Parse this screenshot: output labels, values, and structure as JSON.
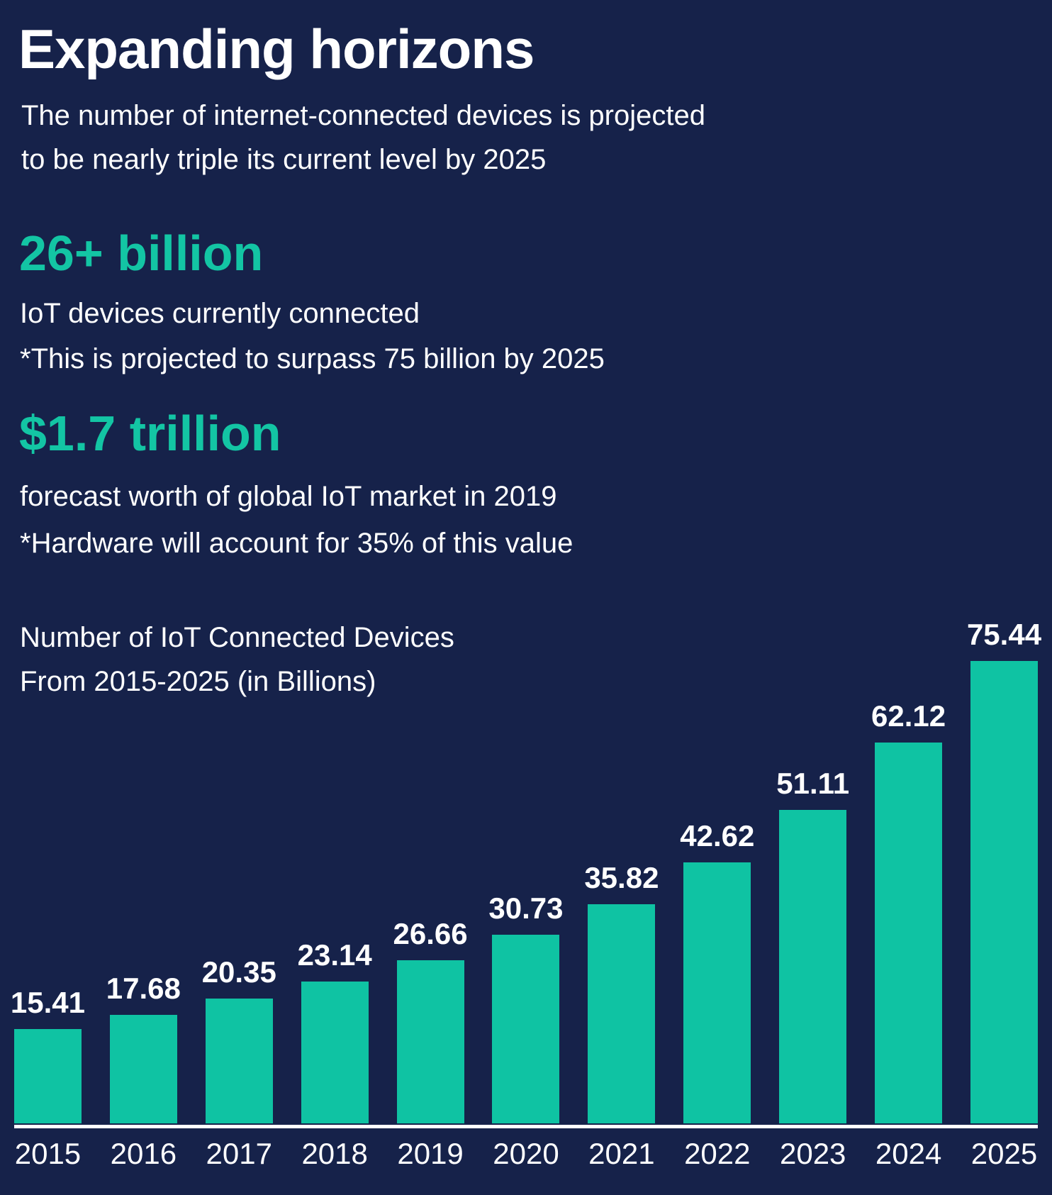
{
  "colors": {
    "background": "#16224a",
    "accent_teal": "#13c5a4",
    "bar_teal": "#0fc3a3",
    "text": "#ffffff"
  },
  "header": {
    "title": "Expanding horizons",
    "subtitle_lines": [
      "The number of internet-connected devices is projected",
      "to be nearly triple its current level by 2025"
    ]
  },
  "stats": [
    {
      "value": "26+ billion",
      "description": "IoT devices currently connected",
      "footnote": "*This is projected to surpass 75 billion by 2025"
    },
    {
      "value": "$1.7 trillion",
      "description": "forecast worth of global IoT market in 2019",
      "footnote": "*Hardware will account for 35% of this value"
    }
  ],
  "chart_data": {
    "type": "bar",
    "title_lines": [
      "Number of IoT Connected Devices",
      "From 2015-2025 (in Billions)"
    ],
    "categories": [
      "2015",
      "2016",
      "2017",
      "2018",
      "2019",
      "2020",
      "2021",
      "2022",
      "2023",
      "2024",
      "2025"
    ],
    "values": [
      15.41,
      17.68,
      20.35,
      23.14,
      26.66,
      30.73,
      35.82,
      42.62,
      51.11,
      62.12,
      75.44
    ],
    "xlabel": "",
    "ylabel": "",
    "ylim": [
      0,
      80
    ],
    "grid": false,
    "legend": "none",
    "value_labels_shown": true,
    "bar_color": "#0fc3a3",
    "value_label_color": "#ffffff",
    "axis_line_color": "#ffffff"
  }
}
